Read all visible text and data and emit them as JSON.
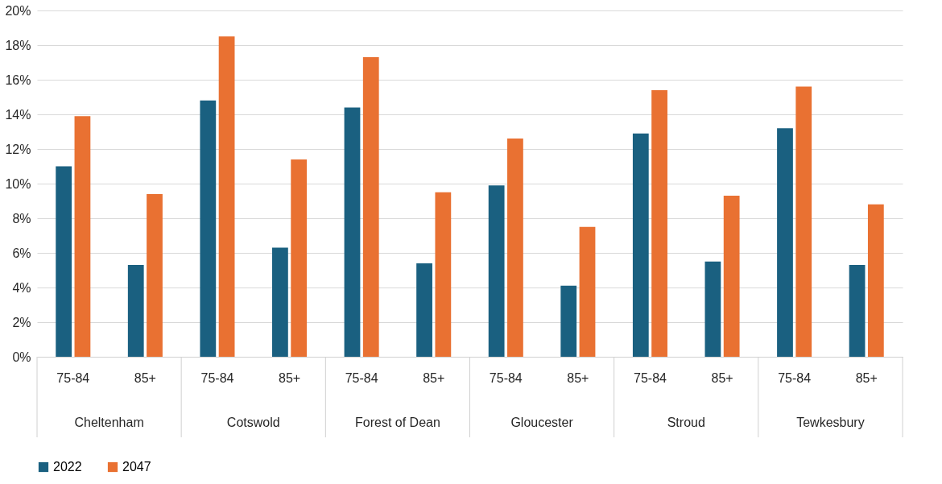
{
  "chart_data": {
    "type": "bar",
    "categories": [
      "75-84",
      "85+",
      "75-84",
      "85+",
      "75-84",
      "85+",
      "75-84",
      "85+",
      "75-84",
      "85+",
      "75-84",
      "85+"
    ],
    "annotations": [
      "Cheltenham",
      "Cotswold",
      "Forest of Dean",
      "Gloucester",
      "Stroud",
      "Tewkesbury"
    ],
    "series": [
      {
        "name": "2022",
        "color": "#1a6080",
        "values": [
          11.0,
          5.3,
          14.8,
          6.3,
          14.4,
          5.4,
          9.9,
          4.1,
          12.9,
          5.5,
          13.2,
          5.3
        ]
      },
      {
        "name": "2047",
        "color": "#e97132",
        "values": [
          13.9,
          9.4,
          18.5,
          11.4,
          17.3,
          9.5,
          12.6,
          7.5,
          15.4,
          9.3,
          15.6,
          8.8
        ]
      }
    ],
    "ylim": [
      0,
      20
    ],
    "yticks": [
      {
        "value": 0,
        "label": "0%"
      },
      {
        "value": 2,
        "label": "2%"
      },
      {
        "value": 4,
        "label": "4%"
      },
      {
        "value": 6,
        "label": "6%"
      },
      {
        "value": 8,
        "label": "8%"
      },
      {
        "value": 10,
        "label": "10%"
      },
      {
        "value": 12,
        "label": "12%"
      },
      {
        "value": 14,
        "label": "14%"
      },
      {
        "value": 16,
        "label": "16%"
      },
      {
        "value": 18,
        "label": "18%"
      },
      {
        "value": 20,
        "label": "20%"
      }
    ],
    "grid": "y",
    "legend": "bottom"
  }
}
